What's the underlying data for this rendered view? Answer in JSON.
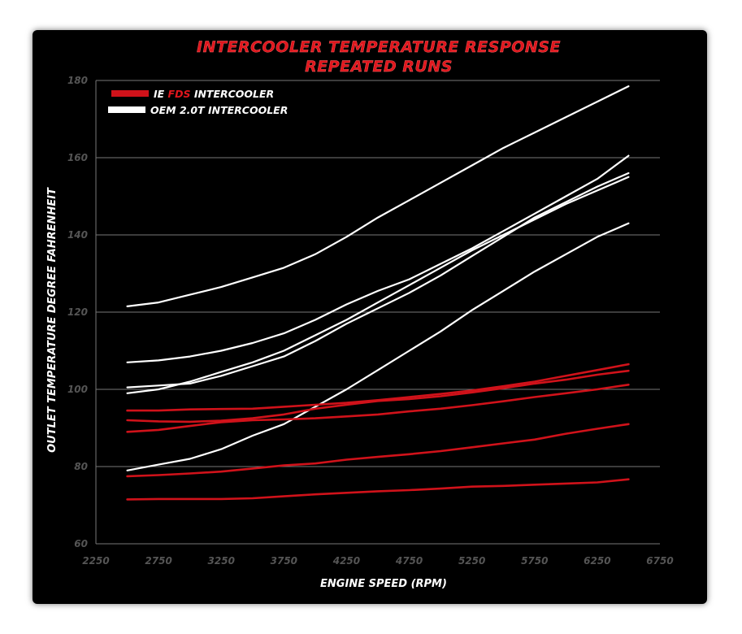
{
  "colors": {
    "background": "#000000",
    "gridline": "#777777",
    "ie_series": "#d0121a",
    "oem_series": "#ffffff",
    "title": "#e0161d"
  },
  "chart_data": {
    "type": "line",
    "title": "INTERCOOLER TEMPERATURE RESPONSE",
    "subtitle": "REPEATED RUNS",
    "xlabel": "ENGINE SPEED (RPM)",
    "ylabel": "OUTLET TEMPERATURE DEGREE FAHRENHEIT",
    "xlim": [
      2250,
      6750
    ],
    "ylim": [
      60,
      180
    ],
    "x_ticks": [
      2250,
      2750,
      3250,
      3750,
      4250,
      4750,
      5250,
      5750,
      6250,
      6750
    ],
    "y_ticks": [
      60,
      80,
      100,
      120,
      140,
      160,
      180
    ],
    "grid": "horizontal",
    "legend": {
      "placement": "top-left",
      "entries": [
        {
          "prefix": "IE ",
          "highlight": "FDS",
          "suffix": " INTERCOOLER",
          "color": "#d0121a"
        },
        {
          "prefix": "OEM 2.0T INTERCOOLER",
          "highlight": "",
          "suffix": "",
          "color": "#ffffff"
        }
      ]
    },
    "x": [
      2500,
      2750,
      3000,
      3250,
      3500,
      3750,
      4000,
      4250,
      4500,
      4750,
      5000,
      5250,
      5500,
      5750,
      6000,
      6250,
      6500
    ],
    "series": [
      {
        "group": "oem",
        "color": "#ffffff",
        "values": [
          121.5,
          122.5,
          124.5,
          126.5,
          129,
          131.5,
          135,
          139.5,
          144.5,
          149,
          153.5,
          158,
          162.5,
          166.5,
          170.5,
          174.5,
          178.5
        ]
      },
      {
        "group": "oem",
        "color": "#ffffff",
        "values": [
          107,
          107.5,
          108.5,
          110,
          112,
          114.5,
          118,
          122,
          125.5,
          128.5,
          132.5,
          136.5,
          141,
          145.5,
          150,
          154.5,
          160.5
        ]
      },
      {
        "group": "oem",
        "color": "#ffffff",
        "values": [
          100.5,
          101,
          101.5,
          103.5,
          106,
          108.5,
          112.5,
          117,
          121,
          125,
          129.5,
          134.5,
          139.5,
          144.5,
          148.5,
          152.5,
          156
        ]
      },
      {
        "group": "oem",
        "color": "#ffffff",
        "values": [
          99,
          100,
          102,
          104.5,
          107,
          110,
          114,
          118,
          122.5,
          127,
          131.5,
          136,
          140,
          144,
          148,
          151.5,
          155
        ]
      },
      {
        "group": "oem",
        "color": "#ffffff",
        "values": [
          79,
          80.5,
          82,
          84.5,
          88,
          91,
          95.5,
          100,
          105,
          110,
          115,
          120.5,
          125.5,
          130.5,
          135,
          139.5,
          143
        ]
      },
      {
        "group": "ie",
        "color": "#d0121a",
        "values": [
          94.5,
          94.5,
          94.8,
          94.9,
          95,
          95.5,
          96,
          96.5,
          97.2,
          98,
          98.8,
          99.7,
          100.8,
          102,
          103.5,
          105,
          106.5
        ]
      },
      {
        "group": "ie",
        "color": "#d0121a",
        "values": [
          92,
          91.7,
          91.6,
          91.9,
          92.5,
          93.5,
          95,
          96,
          97,
          97.5,
          98.2,
          99.2,
          100.3,
          101.5,
          102.5,
          103.8,
          104.8
        ]
      },
      {
        "group": "ie",
        "color": "#d0121a",
        "values": [
          89,
          89.5,
          90.5,
          91.5,
          92,
          92.2,
          92.5,
          93,
          93.5,
          94.3,
          95,
          95.9,
          96.9,
          98,
          99,
          100,
          101.2
        ]
      },
      {
        "group": "ie",
        "color": "#d0121a",
        "values": [
          77.5,
          77.8,
          78.2,
          78.7,
          79.5,
          80.3,
          80.8,
          81.8,
          82.5,
          83.2,
          84,
          85,
          86,
          87,
          88.5,
          89.8,
          91
        ]
      },
      {
        "group": "ie",
        "color": "#d0121a",
        "values": [
          71.5,
          71.6,
          71.6,
          71.6,
          71.8,
          72.3,
          72.8,
          73.2,
          73.6,
          73.9,
          74.3,
          74.8,
          75,
          75.3,
          75.6,
          75.9,
          76.7
        ]
      }
    ]
  }
}
